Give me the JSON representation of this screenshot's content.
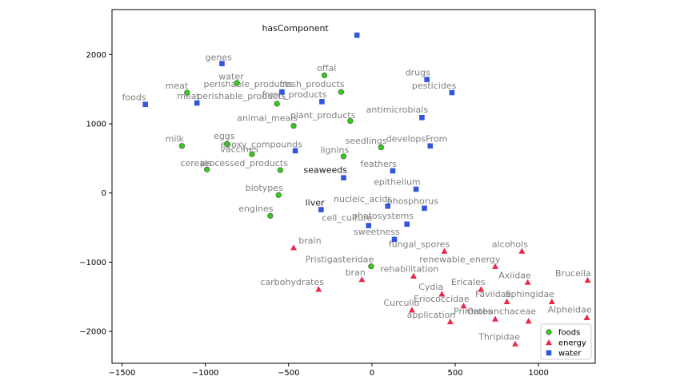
{
  "chart_data": {
    "type": "scatter",
    "title": "",
    "xlabel": "",
    "ylabel": "",
    "xlim": [
      -1560,
      1340
    ],
    "ylim": [
      -2460,
      2650
    ],
    "xticks": [
      -1500,
      -1000,
      -500,
      0,
      500,
      1000
    ],
    "yticks": [
      -2000,
      -1000,
      0,
      1000,
      2000
    ],
    "grid": false,
    "legend_position": "lower-right",
    "series": [
      {
        "name": "foods",
        "marker": "circle",
        "color": "#33cc1a",
        "points": [
          {
            "label": "meat",
            "x": -1110,
            "y": 1450
          },
          {
            "label": "water",
            "x": -810,
            "y": 1590
          },
          {
            "label": "perishable_products",
            "x": -570,
            "y": 1290
          },
          {
            "label": "offal",
            "x": -285,
            "y": 1700
          },
          {
            "label": "fresh_products",
            "x": -185,
            "y": 1460
          },
          {
            "label": "animal_meals",
            "x": -470,
            "y": 970
          },
          {
            "label": "plant_products",
            "x": -130,
            "y": 1040
          },
          {
            "label": "milk",
            "x": -1140,
            "y": 680
          },
          {
            "label": "eggs",
            "x": -870,
            "y": 710
          },
          {
            "label": "vaccines",
            "x": -720,
            "y": 560
          },
          {
            "label": "lignins",
            "x": -170,
            "y": 530
          },
          {
            "label": "seedlings",
            "x": 55,
            "y": 660
          },
          {
            "label": "cereals",
            "x": -990,
            "y": 340
          },
          {
            "label": "processed_products",
            "x": -550,
            "y": 330
          },
          {
            "label": "biotypes",
            "x": -560,
            "y": -30
          },
          {
            "label": "engines",
            "x": -610,
            "y": -330
          },
          {
            "label": "Pristigasteridae",
            "x": -5,
            "y": -1060
          }
        ]
      },
      {
        "name": "energy",
        "marker": "triangle",
        "color": "#e8294a",
        "points": [
          {
            "label": "brain",
            "x": -470,
            "y": -790
          },
          {
            "label": "carbohydrates",
            "x": -320,
            "y": -1390
          },
          {
            "label": "bran",
            "x": -60,
            "y": -1250
          },
          {
            "label": "fungal_spores",
            "x": 435,
            "y": -840
          },
          {
            "label": "alcohols",
            "x": 900,
            "y": -840
          },
          {
            "label": "renewable_energy",
            "x": 740,
            "y": -1060
          },
          {
            "label": "rehabilitation",
            "x": 250,
            "y": -1200
          },
          {
            "label": "Axiidae",
            "x": 935,
            "y": -1290
          },
          {
            "label": "Brucella",
            "x": 1295,
            "y": -1260
          },
          {
            "label": "Cydia",
            "x": 420,
            "y": -1460
          },
          {
            "label": "Ericales",
            "x": 655,
            "y": -1390
          },
          {
            "label": "Eriococcidae",
            "x": 550,
            "y": -1630
          },
          {
            "label": "Faviidae",
            "x": 810,
            "y": -1570
          },
          {
            "label": "Sphingidae",
            "x": 1080,
            "y": -1570
          },
          {
            "label": "Curculio",
            "x": 240,
            "y": -1690
          },
          {
            "label": "application",
            "x": 470,
            "y": -1860
          },
          {
            "label": "Primates",
            "x": 740,
            "y": -1820
          },
          {
            "label": "Orobanchaceae",
            "x": 940,
            "y": -1850
          },
          {
            "label": "Alpheidae",
            "x": 1290,
            "y": -1800
          },
          {
            "label": "Thripidae",
            "x": 860,
            "y": -2180
          }
        ]
      },
      {
        "name": "water",
        "marker": "square",
        "color": "#3355dd",
        "points": [
          {
            "label": "hasComponent",
            "x": -90,
            "y": 2280
          },
          {
            "label": "genes",
            "x": -900,
            "y": 1870
          },
          {
            "label": "foods",
            "x": -1360,
            "y": 1280
          },
          {
            "label": "meat",
            "x": -1050,
            "y": 1300
          },
          {
            "label": "fresh_products",
            "x": -540,
            "y": 1460
          },
          {
            "label": "fresh_products",
            "x": -300,
            "y": 1320
          },
          {
            "label": "drugs",
            "x": 330,
            "y": 1640
          },
          {
            "label": "pesticides",
            "x": 480,
            "y": 1450
          },
          {
            "label": "antimicrobials",
            "x": 300,
            "y": 1090
          },
          {
            "label": "epoxy_compounds",
            "x": -460,
            "y": 610
          },
          {
            "label": "develops From",
            "x": 350,
            "y": 680
          },
          {
            "label": "seaweeds",
            "x": -170,
            "y": 220
          },
          {
            "label": "feathers",
            "x": 125,
            "y": 320
          },
          {
            "label": "epithelium",
            "x": 265,
            "y": 55
          },
          {
            "label": "liver",
            "x": -305,
            "y": -240
          },
          {
            "label": "nucleic_acids",
            "x": 95,
            "y": -190
          },
          {
            "label": "phosphorus",
            "x": 315,
            "y": -220
          },
          {
            "label": "cell_culture",
            "x": -20,
            "y": -470
          },
          {
            "label": "photosystems",
            "x": 210,
            "y": -450
          },
          {
            "label": "sweetness",
            "x": 135,
            "y": -670
          }
        ]
      }
    ],
    "labels": [
      {
        "text": "hasComponent",
        "x": -660,
        "y": 2340,
        "dark": true
      },
      {
        "text": "genes",
        "x": -1000,
        "y": 1920
      },
      {
        "text": "water",
        "x": -920,
        "y": 1640
      },
      {
        "text": "offal",
        "x": -330,
        "y": 1760
      },
      {
        "text": "drugs",
        "x": 200,
        "y": 1700
      },
      {
        "text": "meat",
        "x": -1240,
        "y": 1510
      },
      {
        "text": "perishable_products",
        "x": -1010,
        "y": 1530
      },
      {
        "text": "fresh_products",
        "x": -555,
        "y": 1530
      },
      {
        "text": "pesticides",
        "x": 240,
        "y": 1510
      },
      {
        "text": "foods",
        "x": -1500,
        "y": 1340
      },
      {
        "text": "meat",
        "x": -1170,
        "y": 1360
      },
      {
        "text": "perishable_products",
        "x": -1050,
        "y": 1360
      },
      {
        "text": "fresh_products",
        "x": -660,
        "y": 1380
      },
      {
        "text": "antimicrobials",
        "x": -35,
        "y": 1160
      },
      {
        "text": "plant_products",
        "x": -490,
        "y": 1080
      },
      {
        "text": "animal_meals",
        "x": -810,
        "y": 1040
      },
      {
        "text": "milk",
        "x": -1240,
        "y": 740
      },
      {
        "text": "seedlings",
        "x": -160,
        "y": 710
      },
      {
        "text": "eggs",
        "x": -950,
        "y": 780
      },
      {
        "text": "developsFrom",
        "x": 85,
        "y": 740
      },
      {
        "text": "epoxy_compounds",
        "x": -910,
        "y": 660
      },
      {
        "text": "vaccines",
        "x": -910,
        "y": 590
      },
      {
        "text": "lignins",
        "x": -310,
        "y": 580
      },
      {
        "text": "cereals",
        "x": -1150,
        "y": 390
      },
      {
        "text": "processed_products",
        "x": -1030,
        "y": 390
      },
      {
        "text": "feathers",
        "x": -70,
        "y": 380
      },
      {
        "text": "seaweeds",
        "x": -410,
        "y": 290,
        "dark": true
      },
      {
        "text": "epithelium",
        "x": 10,
        "y": 120
      },
      {
        "text": "biotypes",
        "x": -760,
        "y": 30
      },
      {
        "text": "nucleic_acids",
        "x": -230,
        "y": -130
      },
      {
        "text": "phosphorus",
        "x": 90,
        "y": -160
      },
      {
        "text": "liver",
        "x": -400,
        "y": -180,
        "dark": true
      },
      {
        "text": "engines",
        "x": -800,
        "y": -270
      },
      {
        "text": "photosystems",
        "x": -120,
        "y": -370
      },
      {
        "text": "cell_culture",
        "x": -300,
        "y": -400
      },
      {
        "text": "sweetness",
        "x": -110,
        "y": -600
      },
      {
        "text": "brain",
        "x": -440,
        "y": -730
      },
      {
        "text": "fungal_spores",
        "x": 100,
        "y": -780
      },
      {
        "text": "alcohols",
        "x": 720,
        "y": -780
      },
      {
        "text": "Pristigasteridae",
        "x": -400,
        "y": -1000
      },
      {
        "text": "renewable_energy",
        "x": 285,
        "y": -1000
      },
      {
        "text": "rehabilitation",
        "x": 50,
        "y": -1140
      },
      {
        "text": "bran",
        "x": -160,
        "y": -1190
      },
      {
        "text": "Axiidae",
        "x": 760,
        "y": -1230
      },
      {
        "text": "Brucella",
        "x": 1100,
        "y": -1200
      },
      {
        "text": "carbohydrates",
        "x": -670,
        "y": -1330
      },
      {
        "text": "Ericales",
        "x": 475,
        "y": -1330
      },
      {
        "text": "Cydia",
        "x": 280,
        "y": -1400
      },
      {
        "text": "Faviidae",
        "x": 620,
        "y": -1500
      },
      {
        "text": "Sphingidae",
        "x": 800,
        "y": -1500
      },
      {
        "text": "Eriococcidae",
        "x": 250,
        "y": -1570
      },
      {
        "text": "Curculio",
        "x": 70,
        "y": -1630
      },
      {
        "text": "Primates",
        "x": 490,
        "y": -1750
      },
      {
        "text": "Orobanchaceae",
        "x": 570,
        "y": -1750
      },
      {
        "text": "Alpheidae",
        "x": 1055,
        "y": -1730
      },
      {
        "text": "application",
        "x": 210,
        "y": -1800
      },
      {
        "text": "Thripidae",
        "x": 640,
        "y": -2120
      }
    ]
  }
}
